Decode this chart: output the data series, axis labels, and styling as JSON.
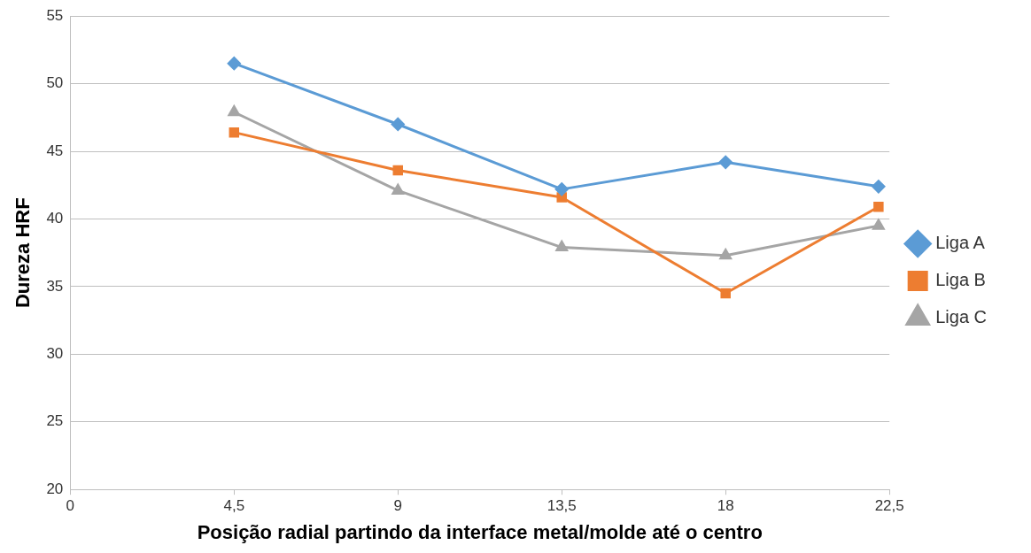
{
  "chart_data": {
    "type": "line",
    "xlabel": "Posição radial partindo da interface metal/molde até o centro",
    "ylabel": "Dureza HRF",
    "xlim": [
      0,
      22.5
    ],
    "xticks": [
      0,
      {
        "value": 4.5,
        "label": "4,5"
      },
      9,
      {
        "value": 13.5,
        "label": "13,5"
      },
      18,
      {
        "value": 22.5,
        "label": "22,5"
      }
    ],
    "ylim": [
      20,
      55
    ],
    "yticks": [
      20,
      25,
      30,
      35,
      40,
      45,
      50,
      55
    ],
    "grid": "y",
    "legend": "right",
    "x": [
      4.5,
      9,
      13.5,
      18,
      22.2
    ],
    "series": [
      {
        "name": "Liga A",
        "color": "#5b9bd5",
        "marker": "diamond",
        "values": [
          51.5,
          47,
          42.2,
          44.2,
          42.4
        ]
      },
      {
        "name": "Liga B",
        "color": "#ed7d31",
        "marker": "square",
        "values": [
          46.4,
          43.6,
          41.6,
          34.5,
          40.9
        ]
      },
      {
        "name": "Liga C",
        "color": "#a5a5a5",
        "marker": "triangle",
        "values": [
          47.9,
          42.1,
          37.9,
          37.3,
          39.5
        ]
      }
    ]
  }
}
